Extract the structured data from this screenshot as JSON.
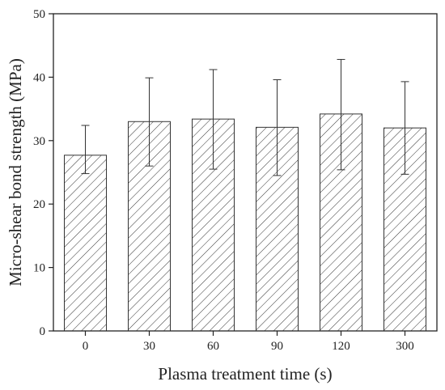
{
  "chart_data": {
    "type": "bar",
    "title": "",
    "xlabel": "Plasma treatment time (s)",
    "ylabel": "Micro-shear bond strength (MPa)",
    "categories": [
      "0",
      "30",
      "60",
      "90",
      "120",
      "300"
    ],
    "values": [
      27.7,
      33.0,
      33.4,
      32.1,
      34.2,
      32.0
    ],
    "errors_upper": [
      32.4,
      39.9,
      41.2,
      39.6,
      42.8,
      39.3
    ],
    "errors_lower": [
      24.8,
      26.0,
      25.5,
      24.5,
      25.4,
      24.7
    ],
    "ylim": [
      0,
      50
    ],
    "yticks": [
      0,
      10,
      20,
      30,
      40,
      50
    ],
    "bar_fill": "diagonal-hatch",
    "grid": false,
    "colors": {
      "bar_edge": "#333333",
      "hatch": "#333333",
      "axis": "#222222"
    }
  }
}
